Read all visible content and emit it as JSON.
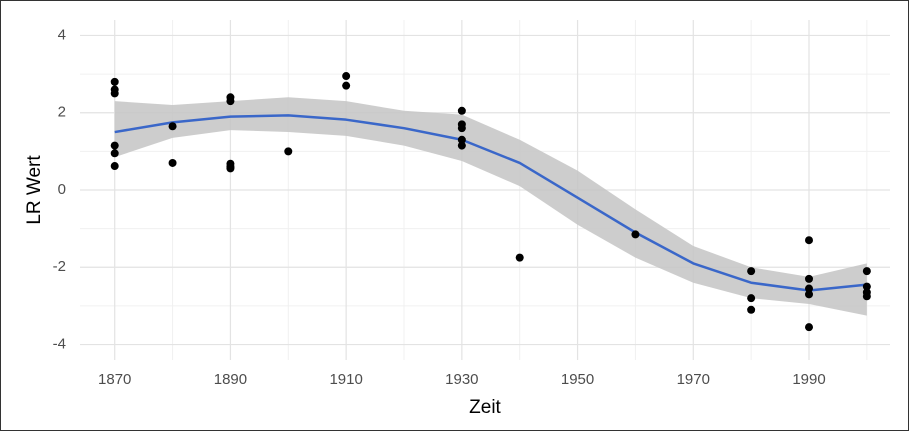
{
  "chart_data": {
    "type": "scatter",
    "x_label": "Zeit",
    "y_label": "LR Wert",
    "xlim": [
      1864,
      2004
    ],
    "ylim": [
      -4.4,
      4.4
    ],
    "xticks": [
      1870,
      1890,
      1910,
      1930,
      1950,
      1970,
      1990
    ],
    "yticks": [
      -4,
      -2,
      0,
      2,
      4
    ],
    "minor_xticks": [
      1880,
      1900,
      1920,
      1940,
      1960,
      1980,
      2000
    ],
    "minor_yticks": [
      -3,
      -1,
      1,
      3
    ],
    "grid": true,
    "series": [
      {
        "type": "band",
        "color": "#c4c4c4",
        "x": [
          1870,
          1880,
          1890,
          1900,
          1910,
          1920,
          1930,
          1940,
          1950,
          1960,
          1970,
          1980,
          1990,
          2000
        ],
        "upper": [
          2.3,
          2.2,
          2.3,
          2.4,
          2.3,
          2.05,
          1.95,
          1.3,
          0.5,
          -0.5,
          -1.45,
          -2.0,
          -2.25,
          -1.9
        ],
        "lower": [
          0.85,
          1.35,
          1.55,
          1.5,
          1.4,
          1.15,
          0.75,
          0.1,
          -0.9,
          -1.75,
          -2.4,
          -2.8,
          -2.95,
          -3.25
        ]
      },
      {
        "type": "line",
        "color": "#3a67c9",
        "x": [
          1870,
          1880,
          1890,
          1900,
          1910,
          1920,
          1930,
          1940,
          1950,
          1960,
          1970,
          1980,
          1990,
          2000
        ],
        "values": [
          1.5,
          1.75,
          1.9,
          1.93,
          1.82,
          1.6,
          1.3,
          0.7,
          -0.2,
          -1.1,
          -1.9,
          -2.4,
          -2.6,
          -2.45
        ]
      },
      {
        "type": "scatter",
        "color": "#000000",
        "x": [
          1870,
          1870,
          1870,
          1870,
          1870,
          1870,
          1880,
          1880,
          1890,
          1890,
          1890,
          1890,
          1890,
          1900,
          1910,
          1910,
          1930,
          1930,
          1930,
          1930,
          1930,
          1940,
          1960,
          1980,
          1980,
          1980,
          1990,
          1990,
          1990,
          1990,
          1990,
          2000,
          2000,
          2000,
          2000
        ],
        "values": [
          2.8,
          2.6,
          2.5,
          1.15,
          0.95,
          0.62,
          1.65,
          0.7,
          2.4,
          2.3,
          0.68,
          0.6,
          0.56,
          1.0,
          2.95,
          2.7,
          2.05,
          1.7,
          1.6,
          1.3,
          1.15,
          -1.75,
          -1.15,
          -2.1,
          -2.8,
          -3.1,
          -1.3,
          -2.3,
          -2.55,
          -2.7,
          -3.55,
          -2.1,
          -2.5,
          -2.65,
          -2.75
        ]
      }
    ]
  }
}
